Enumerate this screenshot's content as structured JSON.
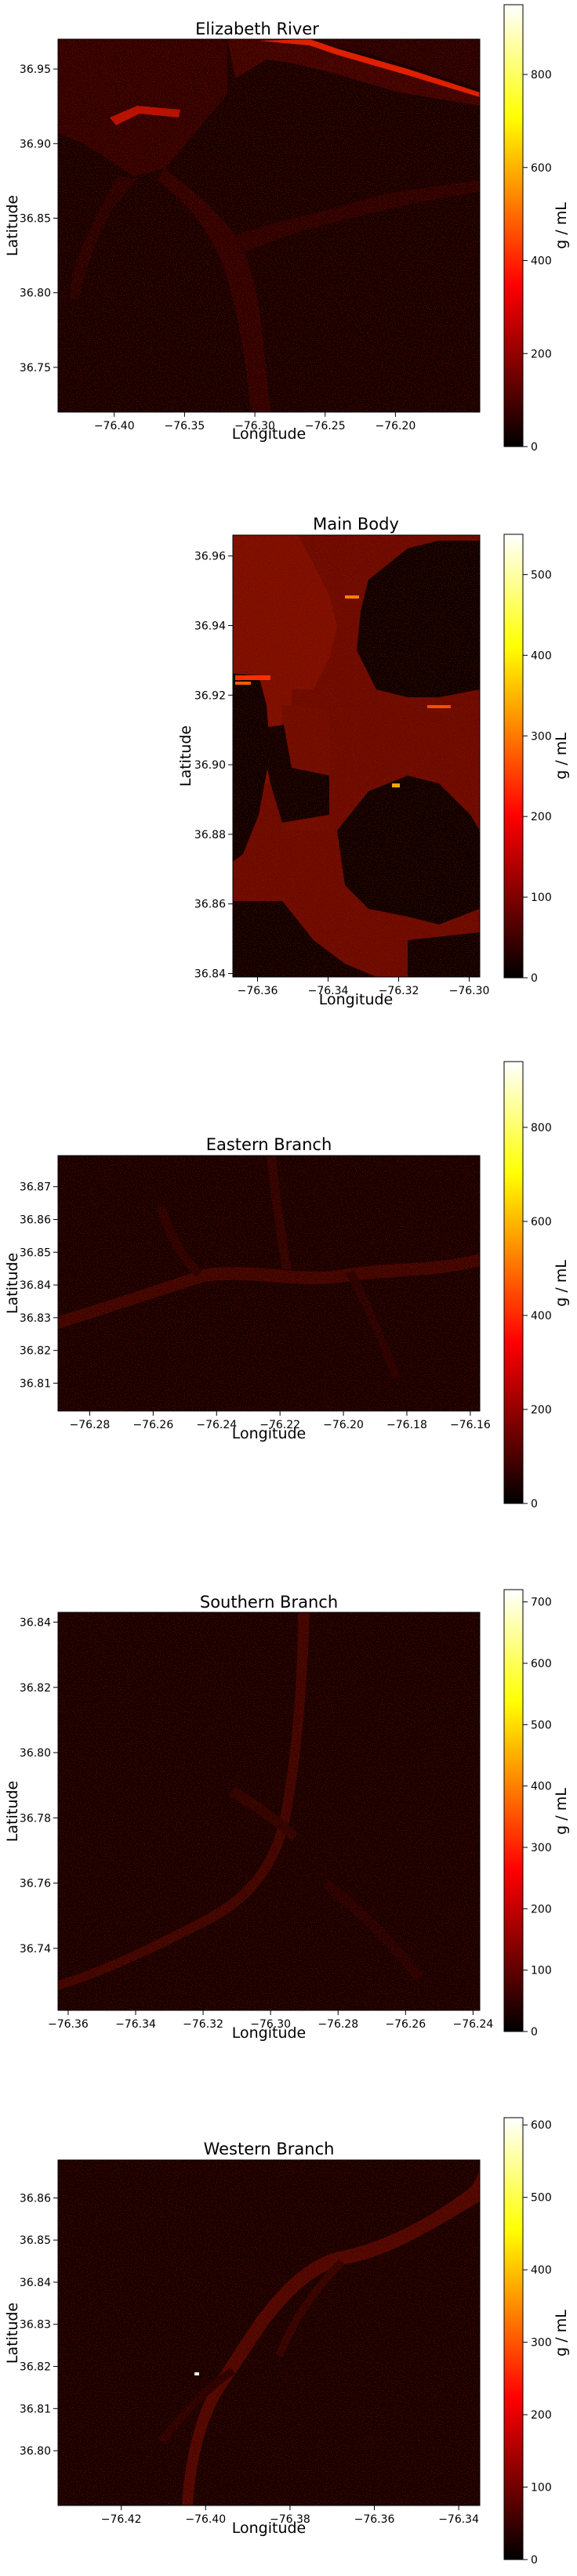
{
  "chart_data": [
    {
      "type": "heatmap",
      "title": "Elizabeth River",
      "xlabel": "Longitude",
      "ylabel": "Latitude",
      "xlim": [
        -76.44,
        -76.14
      ],
      "ylim": [
        36.72,
        36.97
      ],
      "xticks": [
        -76.4,
        -76.35,
        -76.3,
        -76.25,
        -76.2
      ],
      "yticks": [
        36.75,
        36.8,
        36.85,
        36.9,
        36.95
      ],
      "colorbar": {
        "label": "g / mL",
        "min": 0,
        "max": 950,
        "ticks": [
          0,
          200,
          400,
          600,
          800
        ]
      },
      "colormap": "hot"
    },
    {
      "type": "heatmap",
      "title": "Main Body",
      "xlabel": "Longitude",
      "ylabel": "Latitude",
      "xlim": [
        -76.367,
        -76.297
      ],
      "ylim": [
        36.839,
        36.966
      ],
      "xticks": [
        -76.36,
        -76.34,
        -76.32,
        -76.3
      ],
      "yticks": [
        36.84,
        36.86,
        36.88,
        36.9,
        36.92,
        36.94,
        36.96
      ],
      "colorbar": {
        "label": "g / mL",
        "min": 0,
        "max": 550,
        "ticks": [
          0,
          100,
          200,
          300,
          400,
          500
        ]
      },
      "colormap": "hot"
    },
    {
      "type": "heatmap",
      "title": "Eastern Branch",
      "xlabel": "Longitude",
      "ylabel": "Latitude",
      "xlim": [
        -76.29,
        -76.157
      ],
      "ylim": [
        36.8015,
        36.8795
      ],
      "xticks": [
        -76.28,
        -76.26,
        -76.24,
        -76.22,
        -76.2,
        -76.18,
        -76.16
      ],
      "yticks": [
        36.81,
        36.82,
        36.83,
        36.84,
        36.85,
        36.86,
        36.87
      ],
      "colorbar": {
        "label": "g / mL",
        "min": 0,
        "max": 940,
        "ticks": [
          0,
          200,
          400,
          600,
          800
        ]
      },
      "colormap": "hot"
    },
    {
      "type": "heatmap",
      "title": "Southern Branch",
      "xlabel": "Longitude",
      "ylabel": "Latitude",
      "xlim": [
        -76.363,
        -76.238
      ],
      "ylim": [
        36.721,
        36.843
      ],
      "xticks": [
        -76.36,
        -76.34,
        -76.32,
        -76.3,
        -76.28,
        -76.26,
        -76.24
      ],
      "yticks": [
        36.74,
        36.76,
        36.78,
        36.8,
        36.82,
        36.84
      ],
      "colorbar": {
        "label": "g / mL",
        "min": 0,
        "max": 720,
        "ticks": [
          0,
          100,
          200,
          300,
          400,
          500,
          600,
          700
        ]
      },
      "colormap": "hot"
    },
    {
      "type": "heatmap",
      "title": "Western Branch",
      "xlabel": "Longitude",
      "ylabel": "Latitude",
      "xlim": [
        -76.435,
        -76.335
      ],
      "ylim": [
        36.787,
        36.869
      ],
      "xticks": [
        -76.42,
        -76.4,
        -76.38,
        -76.36,
        -76.34
      ],
      "yticks": [
        36.8,
        36.81,
        36.82,
        36.83,
        36.84,
        36.85,
        36.86
      ],
      "colorbar": {
        "label": "g / mL",
        "min": 0,
        "max": 610,
        "ticks": [
          0,
          100,
          200,
          300,
          400,
          500,
          600
        ]
      },
      "colormap": "hot"
    }
  ]
}
